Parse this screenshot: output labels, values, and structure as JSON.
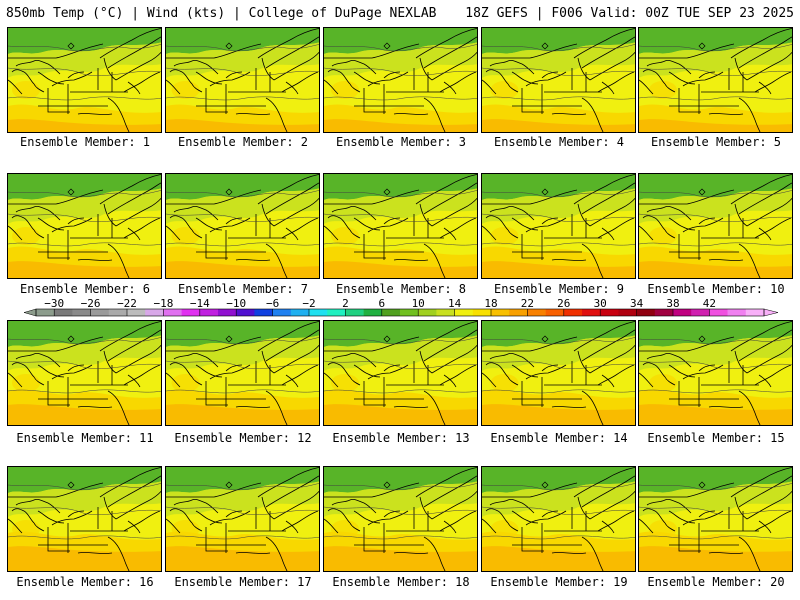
{
  "header": {
    "left": "850mb Temp (°C) | Wind (kts) | College of DuPage NEXLAB",
    "right": "18Z GEFS | F006 Valid: 00Z TUE SEP 23 2025"
  },
  "panels": [
    {
      "label": "Ensemble Member: 1"
    },
    {
      "label": "Ensemble Member: 2"
    },
    {
      "label": "Ensemble Member: 3"
    },
    {
      "label": "Ensemble Member: 4"
    },
    {
      "label": "Ensemble Member: 5"
    },
    {
      "label": "Ensemble Member: 6"
    },
    {
      "label": "Ensemble Member: 7"
    },
    {
      "label": "Ensemble Member: 8"
    },
    {
      "label": "Ensemble Member: 9"
    },
    {
      "label": "Ensemble Member: 10"
    },
    {
      "label": "Ensemble Member: 11"
    },
    {
      "label": "Ensemble Member: 12"
    },
    {
      "label": "Ensemble Member: 13"
    },
    {
      "label": "Ensemble Member: 14"
    },
    {
      "label": "Ensemble Member: 15"
    },
    {
      "label": "Ensemble Member: 16"
    },
    {
      "label": "Ensemble Member: 17"
    },
    {
      "label": "Ensemble Member: 18"
    },
    {
      "label": "Ensemble Member: 19"
    },
    {
      "label": "Ensemble Member: 20"
    }
  ],
  "colorbar": {
    "tick_labels": [
      "−30",
      "−26",
      "−22",
      "−18",
      "−14",
      "−10",
      "−6",
      "−2",
      "2",
      "6",
      "10",
      "14",
      "18",
      "22",
      "26",
      "30",
      "34",
      "38",
      "42"
    ],
    "colors": [
      "#8c9c8c",
      "#7a7a7a",
      "#8a8a8a",
      "#9a9a9a",
      "#aaaaaa",
      "#bcbcbc",
      "#d8a8e8",
      "#e070f0",
      "#e030f0",
      "#c020e0",
      "#9010d0",
      "#5010d0",
      "#1040e0",
      "#2080f0",
      "#20b0f0",
      "#20e0f0",
      "#20f0c0",
      "#20d080",
      "#20b040",
      "#50a020",
      "#70c020",
      "#a0d020",
      "#c8e020",
      "#f0f010",
      "#f8e000",
      "#f8c000",
      "#f8a000",
      "#f88000",
      "#f86000",
      "#f03000",
      "#e01010",
      "#c80010",
      "#b00010",
      "#900010",
      "#a00040",
      "#c00080",
      "#d020b0",
      "#f050e0",
      "#f080f0",
      "#f8b0f8"
    ]
  },
  "colors": {
    "cold_north": "#58b428",
    "mid": "#c8e020",
    "warm": "#f0f010",
    "warmer": "#f8d800",
    "warmest": "#f8b800",
    "map_lines": "#000000"
  }
}
